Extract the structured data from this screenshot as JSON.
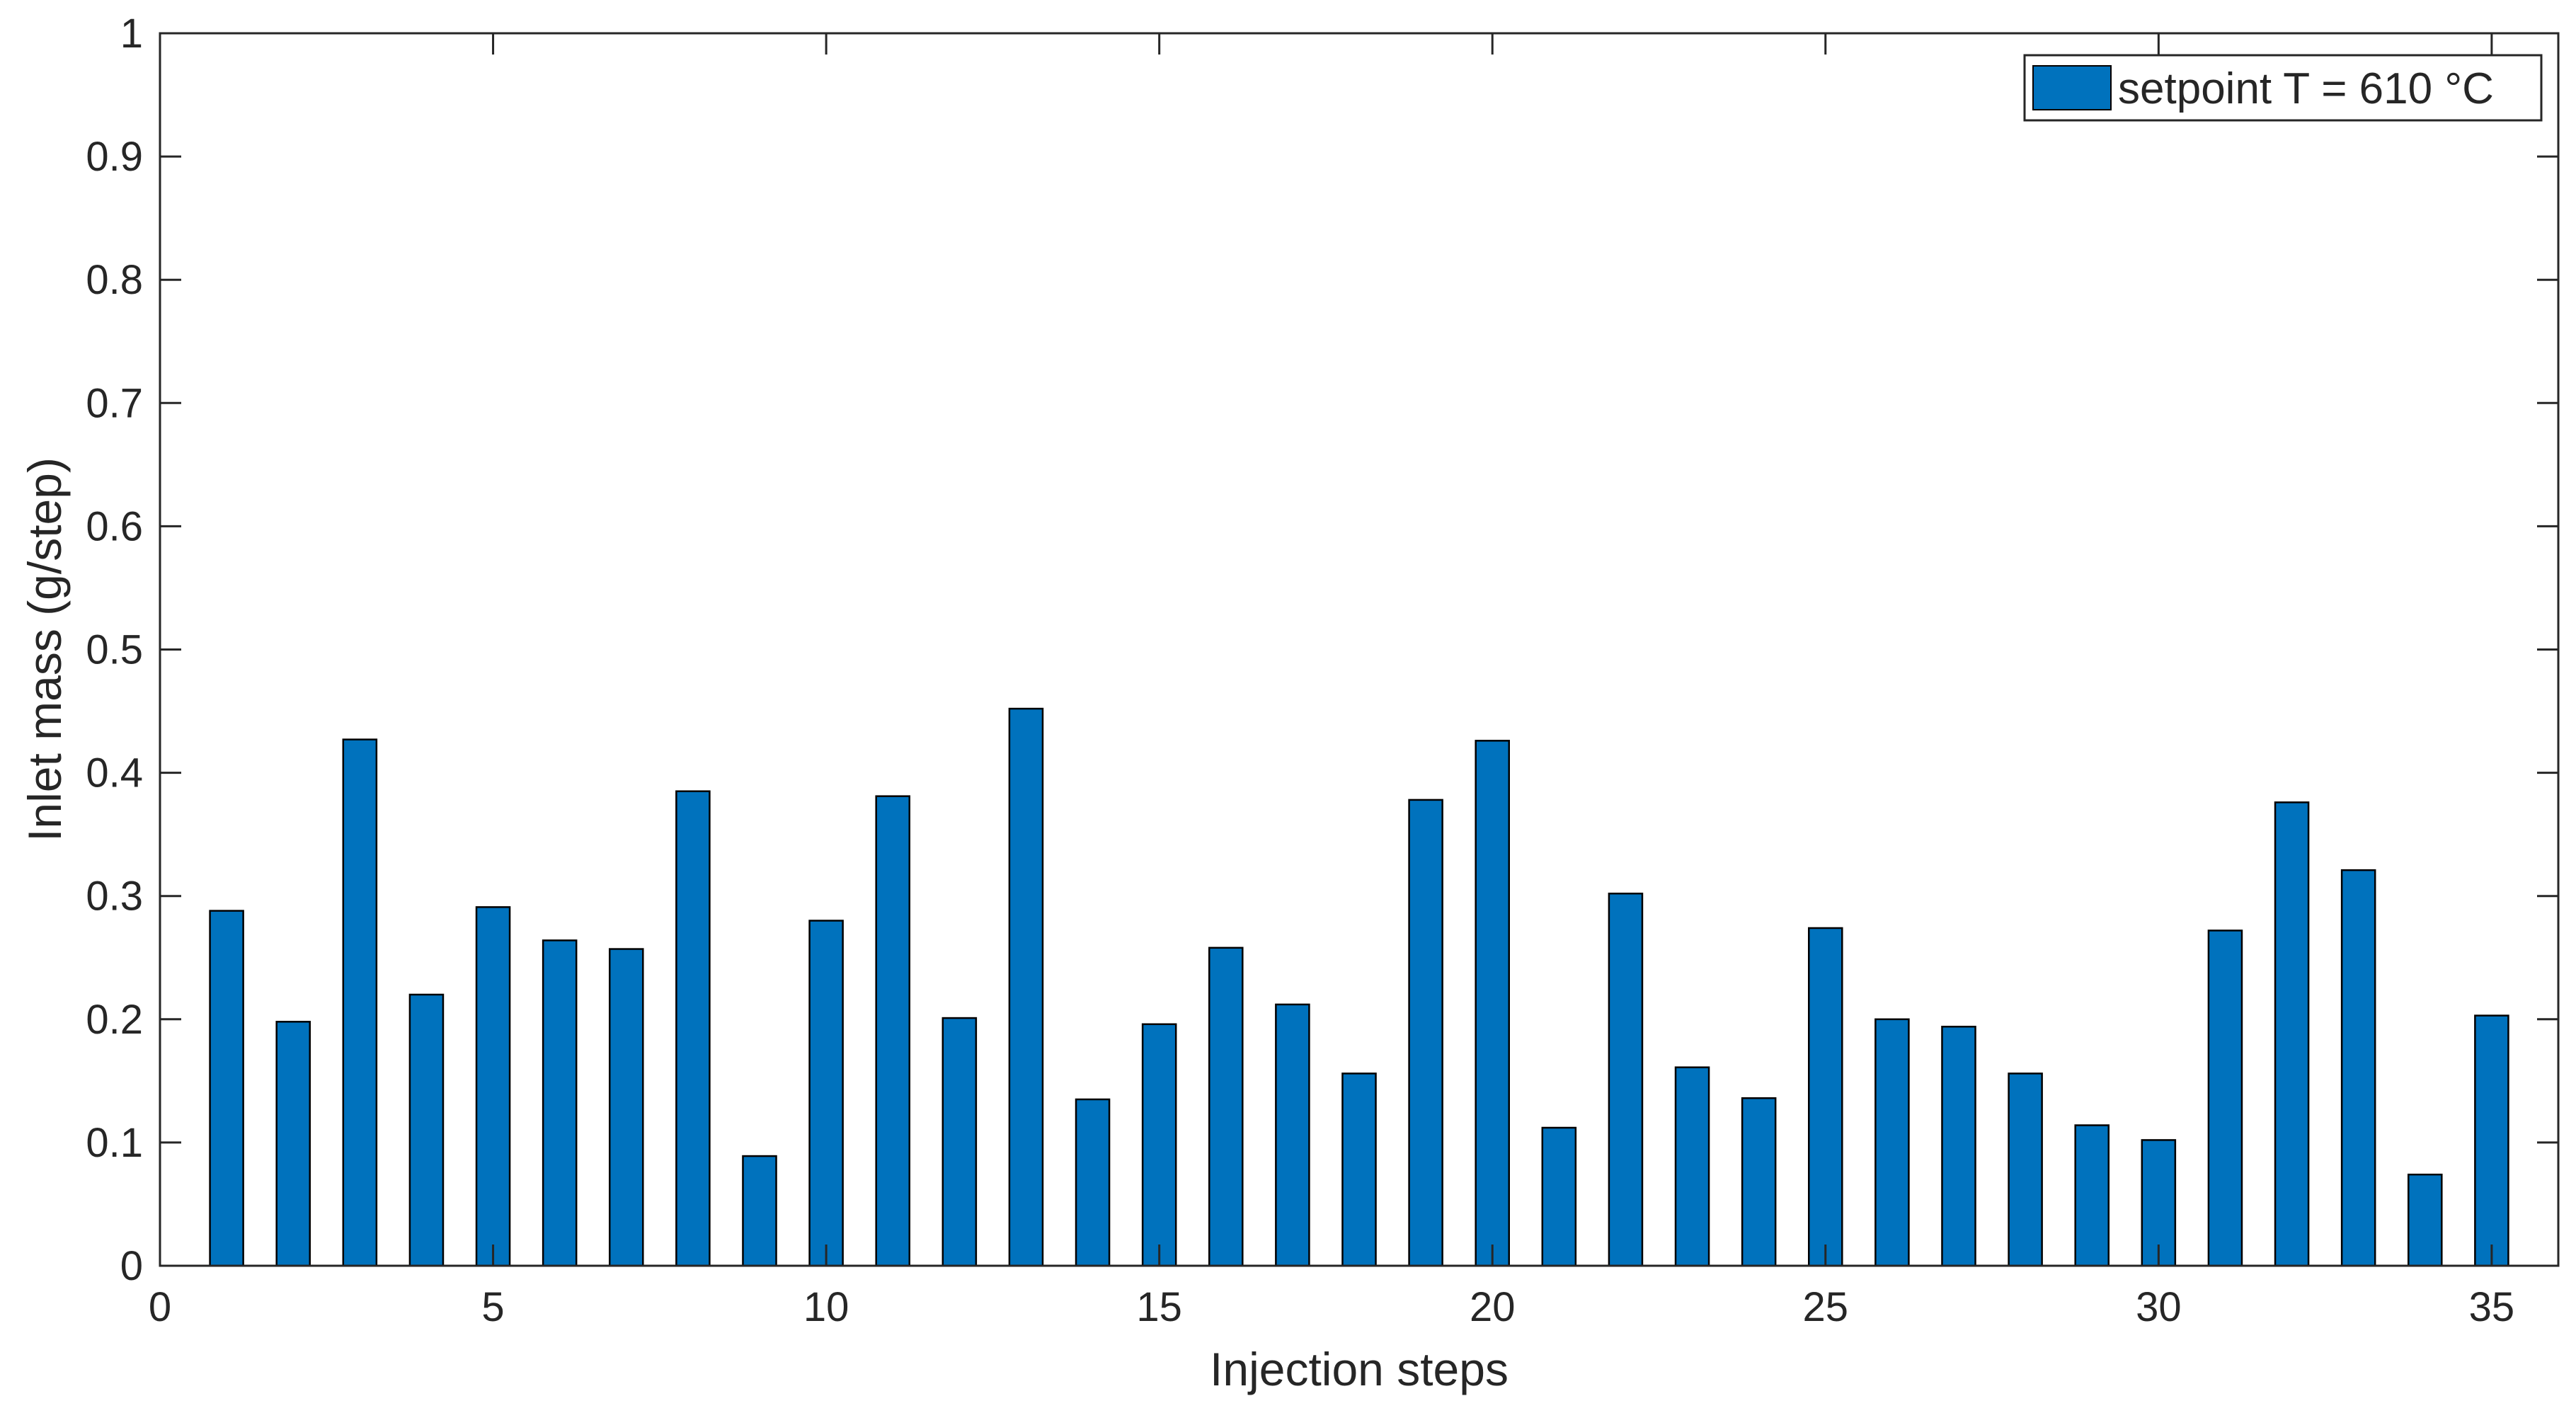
{
  "chart_data": {
    "type": "bar",
    "title": "",
    "xlabel": "Injection steps",
    "ylabel": "Inlet mass (g/step)",
    "xlim": [
      0,
      36
    ],
    "ylim": [
      0,
      1
    ],
    "xticks": [
      0,
      5,
      10,
      15,
      20,
      25,
      30,
      35
    ],
    "xtick_labels": [
      "0",
      "5",
      "10",
      "15",
      "20",
      "25",
      "30",
      "35"
    ],
    "yticks": [
      0,
      0.1,
      0.2,
      0.3,
      0.4,
      0.5,
      0.6,
      0.7,
      0.8,
      0.9,
      1
    ],
    "ytick_labels": [
      "0",
      "0.1",
      "0.2",
      "0.3",
      "0.4",
      "0.5",
      "0.6",
      "0.7",
      "0.8",
      "0.9",
      "1"
    ],
    "grid": false,
    "legend_position": "top-right",
    "categories": [
      1,
      2,
      3,
      4,
      5,
      6,
      7,
      8,
      9,
      10,
      11,
      12,
      13,
      14,
      15,
      16,
      17,
      18,
      19,
      20,
      21,
      22,
      23,
      24,
      25,
      26,
      27,
      28,
      29,
      30,
      31,
      32,
      33,
      34,
      35
    ],
    "series": [
      {
        "name": "setpoint T = 610 °C",
        "color": "#0072BD",
        "values": [
          0.288,
          0.198,
          0.427,
          0.22,
          0.291,
          0.264,
          0.257,
          0.385,
          0.089,
          0.28,
          0.381,
          0.201,
          0.452,
          0.135,
          0.196,
          0.258,
          0.212,
          0.156,
          0.378,
          0.426,
          0.112,
          0.302,
          0.161,
          0.136,
          0.274,
          0.2,
          0.194,
          0.156,
          0.114,
          0.102,
          0.272,
          0.376,
          0.321,
          0.074,
          0.203
        ]
      }
    ]
  }
}
